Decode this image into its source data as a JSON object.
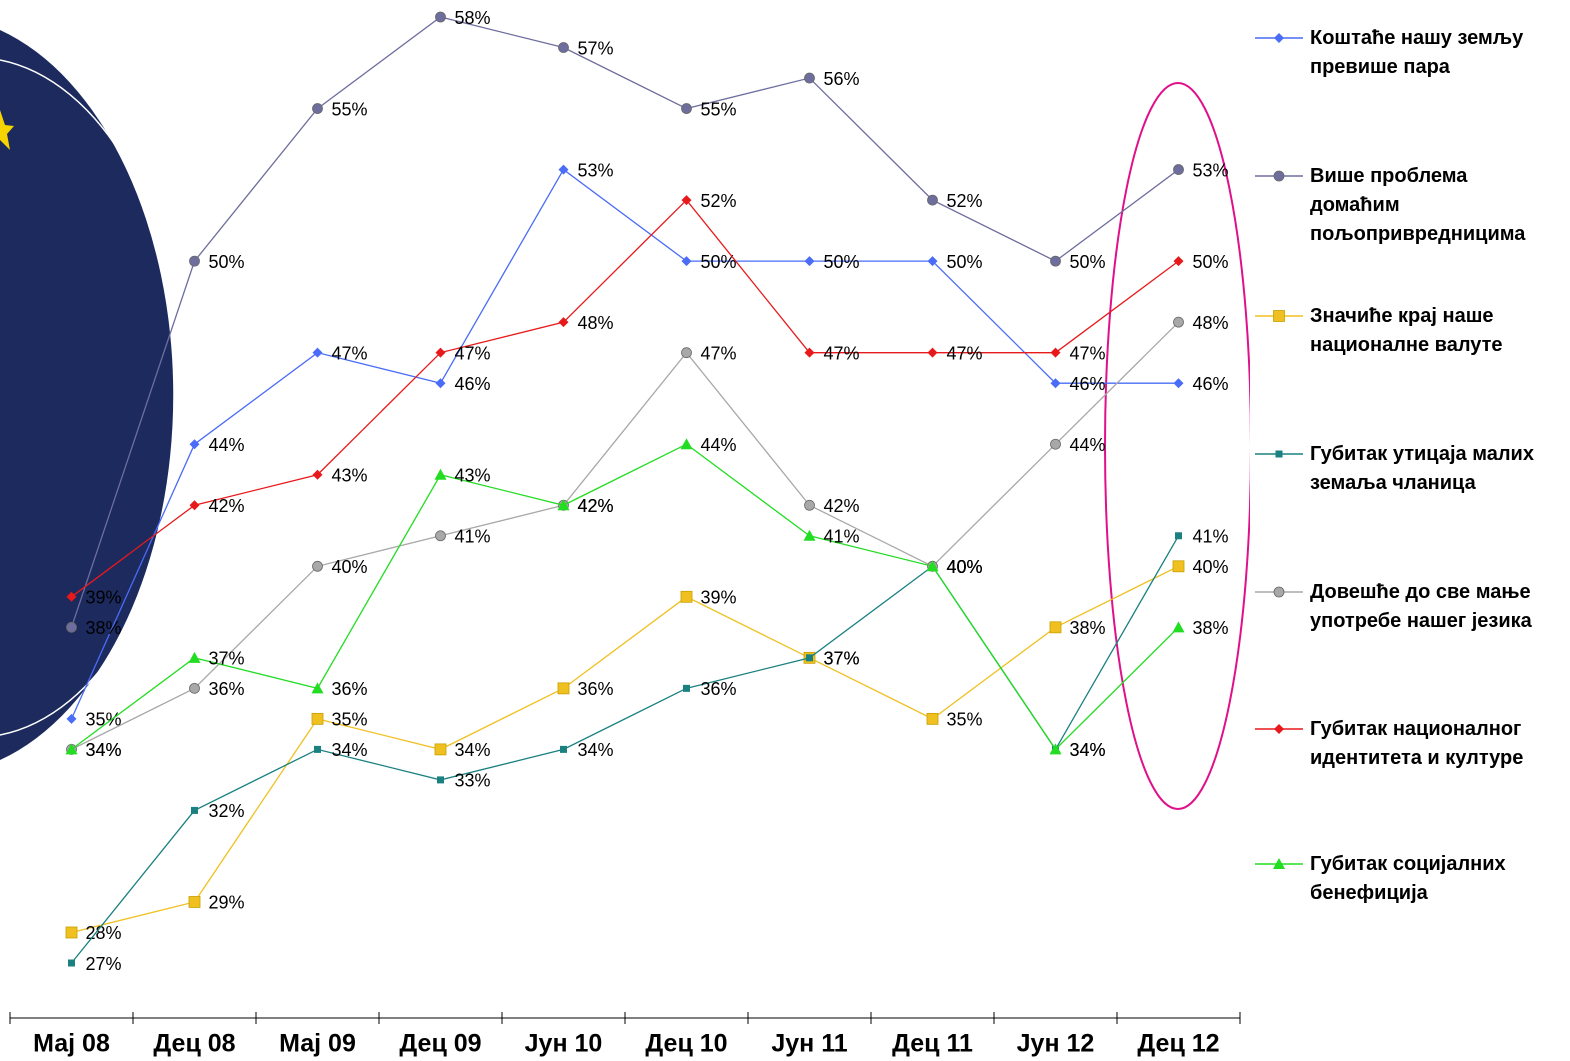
{
  "chart_data": {
    "type": "line",
    "categories": [
      "Мај 08",
      "Дец 08",
      "Мај 09",
      "Дец 09",
      "Јун 10",
      "Дец 10",
      "Јун 11",
      "Дец 11",
      "Јун 12",
      "Дец 12"
    ],
    "series": [
      {
        "name": "Коштаће нашу земљу превише пара",
        "color": "#4a6cf7",
        "marker": "diamond",
        "values": [
          35,
          44,
          47,
          46,
          53,
          50,
          50,
          50,
          46,
          46
        ],
        "value_labels": [
          "35%",
          "44%",
          "47%",
          "46%",
          "53%",
          "50%",
          "50%",
          "50%",
          "46%",
          "46%"
        ]
      },
      {
        "name": "Више проблема домаћим пољопривредницима",
        "color": "#6e6e9e",
        "marker": "circle",
        "values": [
          38,
          50,
          55,
          58,
          57,
          55,
          56,
          52,
          50,
          53
        ],
        "value_labels": [
          "38%",
          "50%",
          "55%",
          "58%",
          "57%",
          "55%",
          "56%",
          "52%",
          "50%",
          "53%"
        ]
      },
      {
        "name": "Значиће крај наше националне валуте",
        "color": "#f0c020",
        "marker": "square",
        "values": [
          28,
          29,
          35,
          34,
          36,
          39,
          37,
          35,
          38,
          40
        ],
        "value_labels": [
          "28%",
          "29%",
          "35%",
          "34%",
          "36%",
          "39%",
          "37%",
          "35%",
          "38%",
          "40%"
        ]
      },
      {
        "name": "Губитак утицаја малих земаља чланица",
        "color": "#1a8080",
        "marker": "small-square",
        "values": [
          27,
          32,
          34,
          33,
          34,
          36,
          37,
          40,
          34,
          41
        ],
        "value_labels": [
          "27%",
          "32%",
          "34%",
          "33%",
          "34%",
          "36%",
          "37%",
          "40%",
          "34%",
          "41%"
        ]
      },
      {
        "name": "Довешће до све мање употребе нашег језика",
        "color": "#a8a8a8",
        "marker": "circle",
        "values": [
          34,
          36,
          40,
          41,
          42,
          47,
          42,
          40,
          44,
          48
        ],
        "value_labels": [
          "34%",
          "36%",
          "40%",
          "41%",
          "42%",
          "47%",
          "42%",
          "40%",
          "44%",
          "48%"
        ]
      },
      {
        "name": "Губитак националног идентитета и културе",
        "color": "#e8191b",
        "marker": "diamond",
        "values": [
          39,
          42,
          43,
          47,
          48,
          52,
          47,
          47,
          47,
          50
        ],
        "value_labels": [
          "39%",
          "42%",
          "43%",
          "47%",
          "48%",
          "52%",
          "47%",
          "47%",
          "47%",
          "50%"
        ]
      },
      {
        "name": "Губитак социјалних бенефиција",
        "color": "#22dd22",
        "marker": "triangle",
        "values": [
          34,
          37,
          36,
          43,
          42,
          44,
          41,
          40,
          34,
          38
        ],
        "value_labels": [
          "34%",
          "37%",
          "36%",
          "43%",
          "42%",
          "44%",
          "41%",
          "40%",
          "34%",
          "38%"
        ]
      }
    ]
  }
}
